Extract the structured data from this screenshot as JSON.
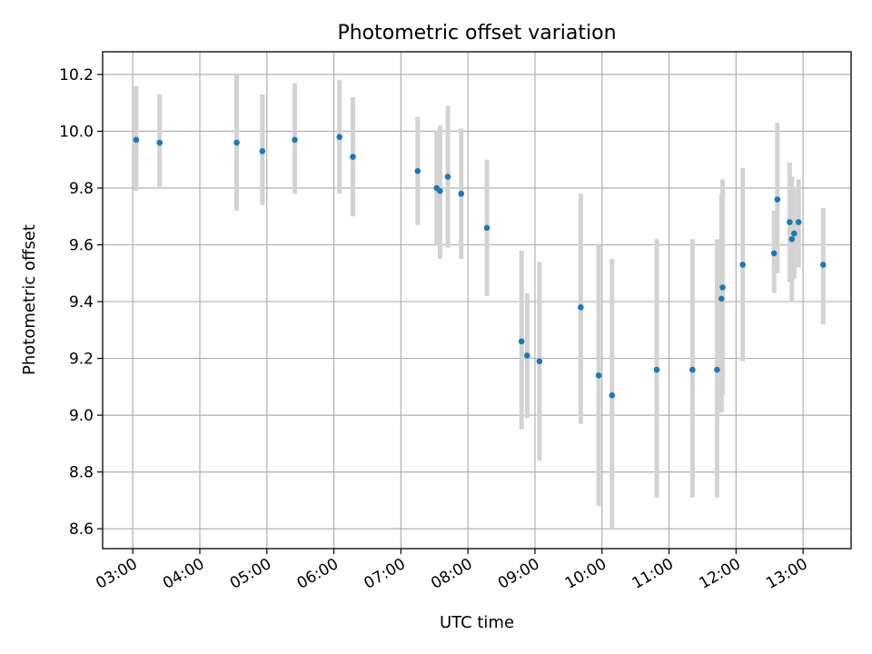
{
  "colors": {
    "point": "#1f77b4",
    "errorbar": "#d3d3d3",
    "grid": "#b0b0b0"
  },
  "chart_data": {
    "type": "scatter",
    "title": "Photometric offset variation",
    "xlabel": "UTC time",
    "ylabel": "Photometric offset",
    "xlim": [
      "02:33",
      "13:43"
    ],
    "ylim": [
      8.53,
      10.28
    ],
    "grid": true,
    "legend": "none",
    "x_ticks": [
      "03:00",
      "04:00",
      "05:00",
      "06:00",
      "07:00",
      "08:00",
      "09:00",
      "10:00",
      "11:00",
      "12:00",
      "13:00"
    ],
    "y_ticks": [
      "8.6",
      "8.8",
      "9.0",
      "9.2",
      "9.4",
      "9.6",
      "9.8",
      "10.0",
      "10.2"
    ],
    "points": [
      {
        "x": "03:03",
        "y": 9.97,
        "ymin": 9.79,
        "ymax": 10.16
      },
      {
        "x": "03:24",
        "y": 9.96,
        "ymin": 9.8,
        "ymax": 10.13
      },
      {
        "x": "04:33",
        "y": 9.96,
        "ymin": 9.72,
        "ymax": 10.2
      },
      {
        "x": "04:56",
        "y": 9.93,
        "ymin": 9.74,
        "ymax": 10.13
      },
      {
        "x": "05:25",
        "y": 9.97,
        "ymin": 9.78,
        "ymax": 10.17
      },
      {
        "x": "06:05",
        "y": 9.98,
        "ymin": 9.78,
        "ymax": 10.18
      },
      {
        "x": "06:17",
        "y": 9.91,
        "ymin": 9.7,
        "ymax": 10.12
      },
      {
        "x": "07:15",
        "y": 9.86,
        "ymin": 9.67,
        "ymax": 10.05
      },
      {
        "x": "07:32",
        "y": 9.8,
        "ymin": 9.6,
        "ymax": 10.0
      },
      {
        "x": "07:35",
        "y": 9.79,
        "ymin": 9.55,
        "ymax": 10.02
      },
      {
        "x": "07:42",
        "y": 9.84,
        "ymin": 9.59,
        "ymax": 10.09
      },
      {
        "x": "07:54",
        "y": 9.78,
        "ymin": 9.55,
        "ymax": 10.01
      },
      {
        "x": "08:17",
        "y": 9.66,
        "ymin": 9.42,
        "ymax": 9.9
      },
      {
        "x": "08:48",
        "y": 9.26,
        "ymin": 8.95,
        "ymax": 9.58
      },
      {
        "x": "08:53",
        "y": 9.21,
        "ymin": 8.99,
        "ymax": 9.43
      },
      {
        "x": "09:04",
        "y": 9.19,
        "ymin": 8.84,
        "ymax": 9.54
      },
      {
        "x": "09:41",
        "y": 9.38,
        "ymin": 8.97,
        "ymax": 9.78
      },
      {
        "x": "09:57",
        "y": 9.14,
        "ymin": 8.68,
        "ymax": 9.6
      },
      {
        "x": "10:09",
        "y": 9.07,
        "ymin": 8.6,
        "ymax": 9.55
      },
      {
        "x": "10:49",
        "y": 9.16,
        "ymin": 8.71,
        "ymax": 9.62
      },
      {
        "x": "11:21",
        "y": 9.16,
        "ymin": 8.71,
        "ymax": 9.62
      },
      {
        "x": "11:43",
        "y": 9.16,
        "ymin": 8.71,
        "ymax": 9.62
      },
      {
        "x": "11:47",
        "y": 9.41,
        "ymin": 9.01,
        "ymax": 9.78
      },
      {
        "x": "11:48",
        "y": 9.45,
        "ymin": 9.07,
        "ymax": 9.83
      },
      {
        "x": "12:06",
        "y": 9.53,
        "ymin": 9.19,
        "ymax": 9.87
      },
      {
        "x": "12:34",
        "y": 9.57,
        "ymin": 9.43,
        "ymax": 9.72
      },
      {
        "x": "12:37",
        "y": 9.76,
        "ymin": 9.5,
        "ymax": 10.03
      },
      {
        "x": "12:48",
        "y": 9.68,
        "ymin": 9.47,
        "ymax": 9.89
      },
      {
        "x": "12:50",
        "y": 9.62,
        "ymin": 9.4,
        "ymax": 9.84
      },
      {
        "x": "12:52",
        "y": 9.64,
        "ymin": 9.48,
        "ymax": 9.8
      },
      {
        "x": "12:56",
        "y": 9.68,
        "ymin": 9.52,
        "ymax": 9.83
      },
      {
        "x": "13:18",
        "y": 9.53,
        "ymin": 9.32,
        "ymax": 9.73
      }
    ]
  }
}
